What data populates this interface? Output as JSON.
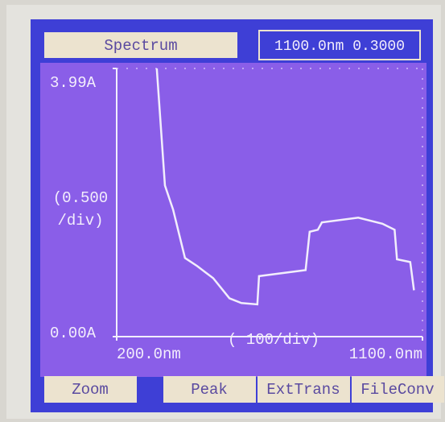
{
  "chart_data": {
    "type": "line",
    "title": "Spectrum",
    "status": "1100.0nm 0.3000",
    "y_label": [
      "(0.500",
      "/div)"
    ],
    "x_label": "( 100/div)",
    "buttons": [
      "Zoom",
      "Peak",
      "ExtTrans",
      "FileConv"
    ],
    "x": [
      318,
      342,
      366,
      401,
      437,
      484,
      532,
      567,
      614,
      619,
      756,
      768,
      792,
      804,
      911,
      982,
      1018,
      1025,
      1064,
      1075
    ],
    "series": [
      {
        "name": "Spectrum",
        "color": "#f2eefc",
        "values": [
          3.99,
          2.25,
          1.89,
          1.17,
          1.05,
          0.87,
          0.57,
          0.5,
          0.48,
          0.9,
          0.99,
          1.56,
          1.59,
          1.7,
          1.77,
          1.68,
          1.59,
          1.15,
          1.11,
          0.69
        ]
      }
    ],
    "xlim": [
      200,
      1100
    ],
    "ylim": [
      0,
      3.99
    ],
    "xticks": [
      {
        "value": 200,
        "label": "200.0nm"
      },
      {
        "value": 1100,
        "label": "1100.0nm"
      }
    ],
    "yticks": [
      {
        "value": 0,
        "label": "0.00A"
      },
      {
        "value": 3.99,
        "label": "3.99A"
      }
    ]
  }
}
